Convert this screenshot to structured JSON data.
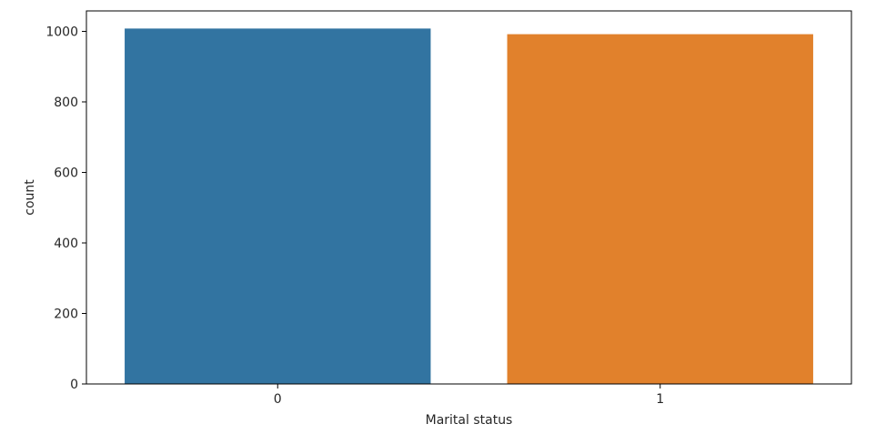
{
  "chart_data": {
    "type": "bar",
    "categories": [
      "0",
      "1"
    ],
    "values": [
      1008,
      992
    ],
    "colors": [
      "#3274a1",
      "#e1812c"
    ],
    "title": "",
    "xlabel": "Marital status",
    "ylabel": "count",
    "ylim": [
      0,
      1058
    ],
    "yticks": [
      0,
      200,
      400,
      600,
      800,
      1000
    ],
    "grid": false,
    "legend": "none"
  }
}
